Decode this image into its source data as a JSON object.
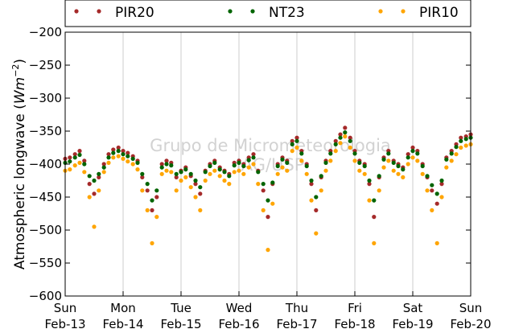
{
  "chart_data": {
    "type": "scatter",
    "title": "",
    "ylabel": "Atmospheric longwave",
    "ylabel_unit": "Wm^-2",
    "ylim": [
      -600,
      -200
    ],
    "yticks": [
      -600,
      -550,
      -500,
      -450,
      -400,
      -350,
      -300,
      -250,
      -200
    ],
    "ytick_labels": [
      "−600",
      "−550",
      "−500",
      "−450",
      "−400",
      "−350",
      "−300",
      "−250",
      "−200"
    ],
    "xlim": [
      "2011-02-13",
      "2011-02-20"
    ],
    "x_ticks": [
      {
        "day": "Sun",
        "date": "Feb-13"
      },
      {
        "day": "Mon",
        "date": "Feb-14"
      },
      {
        "day": "Tue",
        "date": "Feb-15"
      },
      {
        "day": "Wed",
        "date": "Feb-16"
      },
      {
        "day": "Thu",
        "date": "Feb-17"
      },
      {
        "day": "Fri",
        "date": "Feb-18"
      },
      {
        "day": "Sat",
        "date": "Feb-19"
      },
      {
        "day": "Sun",
        "date": "Feb-20"
      }
    ],
    "grid": "vertical",
    "legend_placement": "top",
    "watermark": [
      "Grupo de Micrometeorologia",
      "IAG/USP"
    ],
    "series": [
      {
        "name": "PIR20",
        "color": "#a52a2a",
        "x_days": [
          0,
          0.08,
          0.17,
          0.25,
          0.33,
          0.42,
          0.5,
          0.58,
          0.67,
          0.75,
          0.83,
          0.92,
          1,
          1.08,
          1.17,
          1.25,
          1.33,
          1.42,
          1.5,
          1.58,
          1.67,
          1.75,
          1.83,
          1.92,
          2,
          2.08,
          2.17,
          2.25,
          2.33,
          2.42,
          2.5,
          2.58,
          2.67,
          2.75,
          2.83,
          2.92,
          3,
          3.08,
          3.17,
          3.25,
          3.33,
          3.42,
          3.5,
          3.58,
          3.67,
          3.75,
          3.83,
          3.92,
          4,
          4.08,
          4.17,
          4.25,
          4.33,
          4.42,
          4.5,
          4.58,
          4.67,
          4.75,
          4.83,
          4.92,
          5,
          5.08,
          5.17,
          5.25,
          5.33,
          5.42,
          5.5,
          5.58,
          5.67,
          5.75,
          5.83,
          5.92,
          6,
          6.08,
          6.17,
          6.25,
          6.33,
          6.42,
          6.5,
          6.58,
          6.67,
          6.75,
          6.83,
          6.92,
          7
        ],
        "values": [
          -392,
          -390,
          -385,
          -380,
          -395,
          -430,
          -445,
          -420,
          -400,
          -385,
          -378,
          -375,
          -380,
          -383,
          -388,
          -395,
          -420,
          -440,
          -470,
          -450,
          -400,
          -395,
          -398,
          -420,
          -410,
          -405,
          -418,
          -430,
          -445,
          -410,
          -400,
          -395,
          -405,
          -410,
          -415,
          -398,
          -395,
          -400,
          -390,
          -385,
          -410,
          -440,
          -480,
          -430,
          -400,
          -390,
          -395,
          -365,
          -360,
          -380,
          -400,
          -430,
          -470,
          -420,
          -395,
          -380,
          -365,
          -355,
          -345,
          -360,
          -380,
          -395,
          -400,
          -430,
          -480,
          -420,
          -390,
          -380,
          -395,
          -400,
          -405,
          -385,
          -375,
          -380,
          -400,
          -420,
          -440,
          -460,
          -430,
          -390,
          -380,
          -370,
          -360,
          -358,
          -355
        ]
      },
      {
        "name": "NT23",
        "color": "#006400",
        "x_days": [
          0,
          0.08,
          0.17,
          0.25,
          0.33,
          0.42,
          0.5,
          0.58,
          0.67,
          0.75,
          0.83,
          0.92,
          1,
          1.08,
          1.17,
          1.25,
          1.33,
          1.42,
          1.5,
          1.58,
          1.67,
          1.75,
          1.83,
          1.92,
          2,
          2.08,
          2.17,
          2.25,
          2.33,
          2.42,
          2.5,
          2.58,
          2.67,
          2.75,
          2.83,
          2.92,
          3,
          3.08,
          3.17,
          3.25,
          3.33,
          3.42,
          3.5,
          3.58,
          3.67,
          3.75,
          3.83,
          3.92,
          4,
          4.08,
          4.17,
          4.25,
          4.33,
          4.42,
          4.5,
          4.58,
          4.67,
          4.75,
          4.83,
          4.92,
          5,
          5.08,
          5.17,
          5.25,
          5.33,
          5.42,
          5.5,
          5.58,
          5.67,
          5.75,
          5.83,
          5.92,
          6,
          6.08,
          6.17,
          6.25,
          6.33,
          6.42,
          6.5,
          6.58,
          6.67,
          6.75,
          6.83,
          6.92,
          7
        ],
        "values": [
          -398,
          -396,
          -390,
          -386,
          -400,
          -418,
          -425,
          -415,
          -405,
          -390,
          -383,
          -380,
          -385,
          -388,
          -392,
          -398,
          -415,
          -430,
          -455,
          -440,
          -405,
          -400,
          -402,
          -415,
          -412,
          -408,
          -415,
          -425,
          -435,
          -412,
          -403,
          -398,
          -408,
          -412,
          -418,
          -402,
          -398,
          -403,
          -394,
          -390,
          -412,
          -430,
          -455,
          -428,
          -403,
          -393,
          -398,
          -370,
          -365,
          -384,
          -403,
          -425,
          -450,
          -418,
          -398,
          -384,
          -370,
          -360,
          -352,
          -365,
          -384,
          -398,
          -403,
          -425,
          -455,
          -418,
          -393,
          -384,
          -398,
          -403,
          -408,
          -390,
          -380,
          -384,
          -403,
          -418,
          -432,
          -445,
          -425,
          -393,
          -384,
          -374,
          -365,
          -362,
          -360
        ]
      },
      {
        "name": "PIR10",
        "color": "#ffa500",
        "x_days": [
          0,
          0.08,
          0.17,
          0.25,
          0.33,
          0.42,
          0.5,
          0.58,
          0.67,
          0.75,
          0.83,
          0.92,
          1,
          1.08,
          1.17,
          1.25,
          1.33,
          1.42,
          1.5,
          1.58,
          1.67,
          1.75,
          1.83,
          1.92,
          2,
          2.08,
          2.17,
          2.25,
          2.33,
          2.42,
          2.5,
          2.58,
          2.67,
          2.75,
          2.83,
          2.92,
          3,
          3.08,
          3.17,
          3.25,
          3.33,
          3.42,
          3.5,
          3.58,
          3.67,
          3.75,
          3.83,
          3.92,
          4,
          4.08,
          4.17,
          4.25,
          4.33,
          4.42,
          4.5,
          4.58,
          4.67,
          4.75,
          4.83,
          4.92,
          5,
          5.08,
          5.17,
          5.25,
          5.33,
          5.42,
          5.5,
          5.58,
          5.67,
          5.75,
          5.83,
          5.92,
          6,
          6.08,
          6.17,
          6.25,
          6.33,
          6.42,
          6.5,
          6.58,
          6.67,
          6.75,
          6.83,
          6.92,
          7
        ],
        "values": [
          -410,
          -408,
          -402,
          -398,
          -412,
          -450,
          -495,
          -440,
          -412,
          -398,
          -390,
          -388,
          -392,
          -396,
          -400,
          -408,
          -440,
          -470,
          -520,
          -480,
          -415,
          -410,
          -412,
          -440,
          -425,
          -420,
          -435,
          -450,
          -470,
          -425,
          -415,
          -410,
          -418,
          -425,
          -430,
          -412,
          -410,
          -415,
          -405,
          -400,
          -430,
          -470,
          -530,
          -460,
          -415,
          -405,
          -410,
          -380,
          -375,
          -395,
          -415,
          -455,
          -505,
          -440,
          -410,
          -395,
          -380,
          -368,
          -358,
          -375,
          -395,
          -410,
          -415,
          -455,
          -520,
          -440,
          -405,
          -395,
          -410,
          -415,
          -420,
          -400,
          -390,
          -395,
          -415,
          -440,
          -470,
          -520,
          -450,
          -405,
          -395,
          -385,
          -375,
          -372,
          -370
        ]
      }
    ]
  }
}
